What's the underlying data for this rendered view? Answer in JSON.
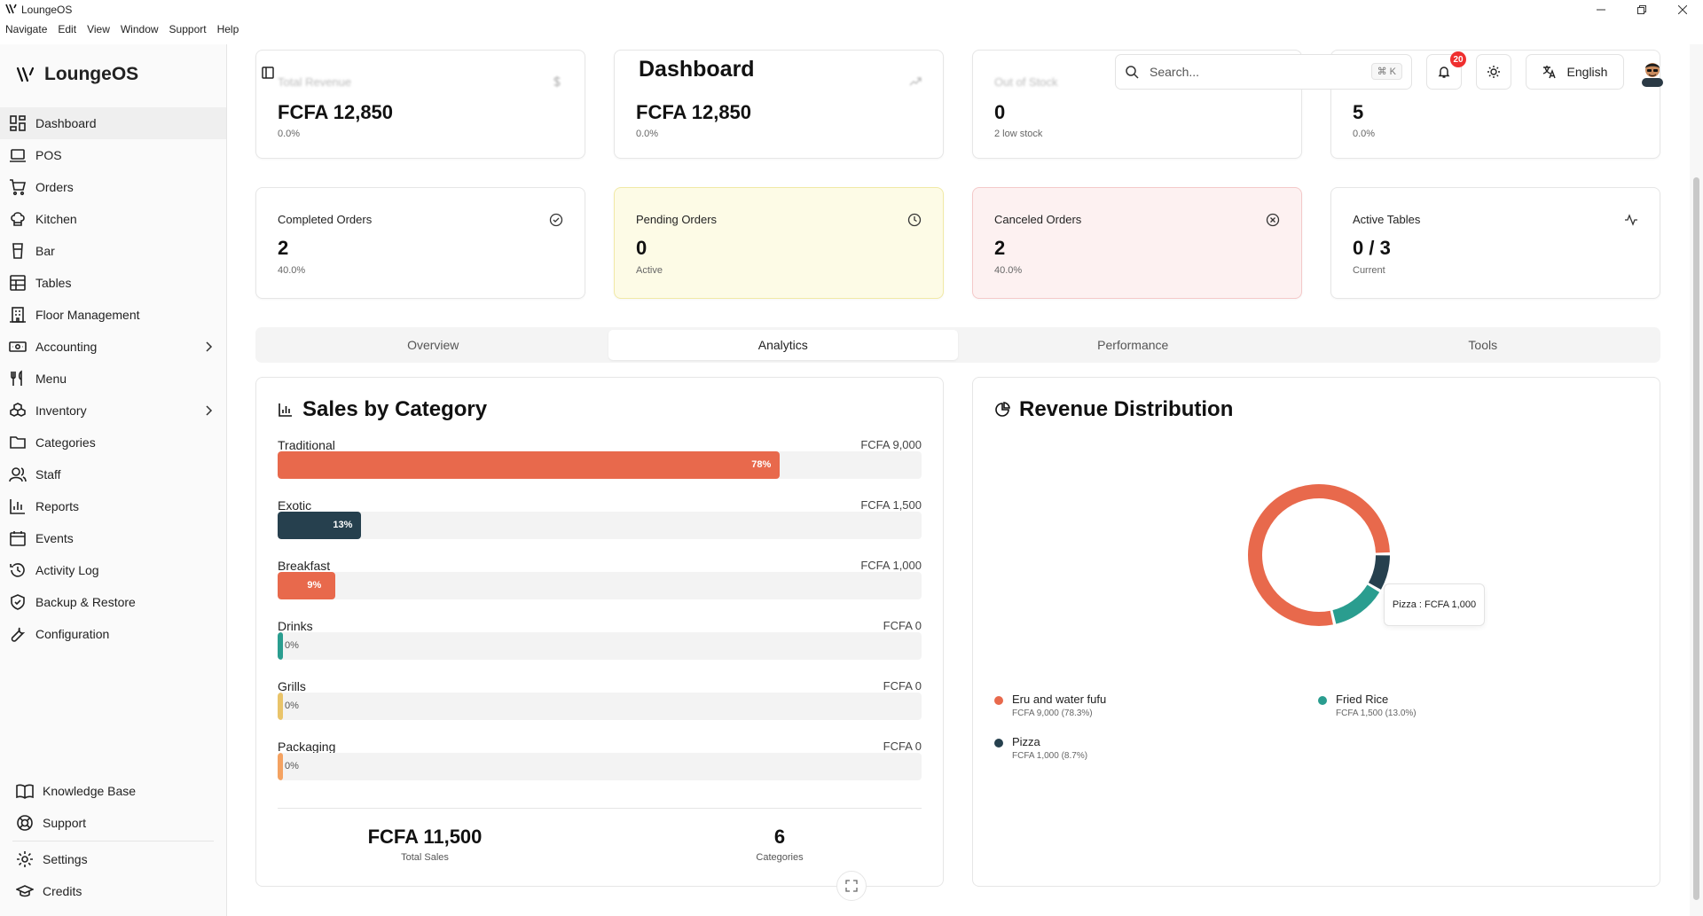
{
  "window": {
    "title": "LoungeOS",
    "menu": [
      "Navigate",
      "Edit",
      "View",
      "Window",
      "Support",
      "Help"
    ]
  },
  "sidebar": {
    "brand": "LoungeOS",
    "items": [
      {
        "label": "Dashboard",
        "icon": "dashboard-icon",
        "active": true
      },
      {
        "label": "POS",
        "icon": "laptop-icon"
      },
      {
        "label": "Orders",
        "icon": "cart-icon"
      },
      {
        "label": "Kitchen",
        "icon": "chef-hat-icon"
      },
      {
        "label": "Bar",
        "icon": "cup-icon"
      },
      {
        "label": "Tables",
        "icon": "table-grid-icon"
      },
      {
        "label": "Floor Management",
        "icon": "building-icon"
      },
      {
        "label": "Accounting",
        "icon": "money-icon",
        "expandable": true
      },
      {
        "label": "Menu",
        "icon": "utensils-icon"
      },
      {
        "label": "Inventory",
        "icon": "boxes-icon",
        "expandable": true
      },
      {
        "label": "Categories",
        "icon": "folder-icon"
      },
      {
        "label": "Staff",
        "icon": "users-icon"
      },
      {
        "label": "Reports",
        "icon": "bar-chart-icon"
      },
      {
        "label": "Events",
        "icon": "calendar-icon"
      },
      {
        "label": "Activity Log",
        "icon": "history-icon"
      },
      {
        "label": "Backup & Restore",
        "icon": "shield-icon"
      },
      {
        "label": "Configuration",
        "icon": "wrench-icon"
      }
    ],
    "bottom_items": [
      {
        "label": "Knowledge Base",
        "icon": "book-icon"
      },
      {
        "label": "Support",
        "icon": "lifebuoy-icon"
      },
      {
        "label": "Settings",
        "icon": "gear-icon"
      },
      {
        "label": "Credits",
        "icon": "graduation-cap-icon"
      }
    ]
  },
  "header": {
    "title": "Dashboard",
    "search_placeholder": "Search...",
    "shortcut": "⌘ K",
    "notification_count": "20",
    "language": "English"
  },
  "stats_top": [
    {
      "title": "Total Revenue",
      "value": "FCFA 12,850",
      "sub": "0.0%"
    },
    {
      "title": "",
      "value": "FCFA 12,850",
      "sub": "0.0%"
    },
    {
      "title": "Out of Stock",
      "value": "0",
      "sub": "2 low stock"
    },
    {
      "title": "",
      "value": "5",
      "sub": "0.0%"
    }
  ],
  "stats": [
    {
      "title": "Completed Orders",
      "value": "2",
      "sub": "40.0%",
      "icon": "check-circle-icon"
    },
    {
      "title": "Pending Orders",
      "value": "0",
      "sub": "Active",
      "icon": "clock-icon"
    },
    {
      "title": "Canceled Orders",
      "value": "2",
      "sub": "40.0%",
      "icon": "x-circle-icon"
    },
    {
      "title": "Active Tables",
      "value": "0 / 3",
      "sub": "Current",
      "icon": "activity-icon"
    }
  ],
  "tabs": [
    "Overview",
    "Analytics",
    "Performance",
    "Tools"
  ],
  "active_tab": "Analytics",
  "sales_panel": {
    "title": "Sales by Category",
    "total_sales": "FCFA 11,500",
    "total_sales_label": "Total Sales",
    "categories_count": "6",
    "categories_label": "Categories"
  },
  "revenue_panel": {
    "title": "Revenue Distribution",
    "tooltip": "Pizza : FCFA 1,000",
    "legend": [
      {
        "name": "Eru and water fufu",
        "detail": "FCFA 9,000 (78.3%)"
      },
      {
        "name": "Fried Rice",
        "detail": "FCFA 1,500 (13.0%)"
      },
      {
        "name": "Pizza",
        "detail": "FCFA 1,000 (8.7%)"
      }
    ]
  },
  "colors": {
    "primary": "#e8694c",
    "navy": "#26404e",
    "teal": "#2a9d8f",
    "yellow": "#e9c46a",
    "orange": "#f4a261"
  },
  "chart_data": [
    {
      "type": "bar",
      "title": "Sales by Category",
      "orientation": "horizontal",
      "categories": [
        "Traditional",
        "Exotic",
        "Breakfast",
        "Drinks",
        "Grills",
        "Packaging"
      ],
      "amounts": [
        "FCFA 9,000",
        "FCFA 1,500",
        "FCFA 1,000",
        "FCFA 0",
        "FCFA 0",
        "FCFA 0"
      ],
      "values": [
        9000,
        1500,
        1000,
        0,
        0,
        0
      ],
      "percent_labels": [
        "78%",
        "13%",
        "9%",
        "0%",
        "0%",
        "0%"
      ],
      "percents": [
        78,
        13,
        9,
        0,
        0,
        0
      ],
      "colors": [
        "#e8694c",
        "#26404e",
        "#e8694c",
        "#2a9d8f",
        "#e9c46a",
        "#f4a261"
      ]
    },
    {
      "type": "pie",
      "title": "Revenue Distribution",
      "donut": true,
      "labels": [
        "Eru and water fufu",
        "Fried Rice",
        "Pizza"
      ],
      "values": [
        9000,
        1500,
        1000
      ],
      "colors": [
        "#e8694c",
        "#2a9d8f",
        "#26404e"
      ]
    }
  ]
}
